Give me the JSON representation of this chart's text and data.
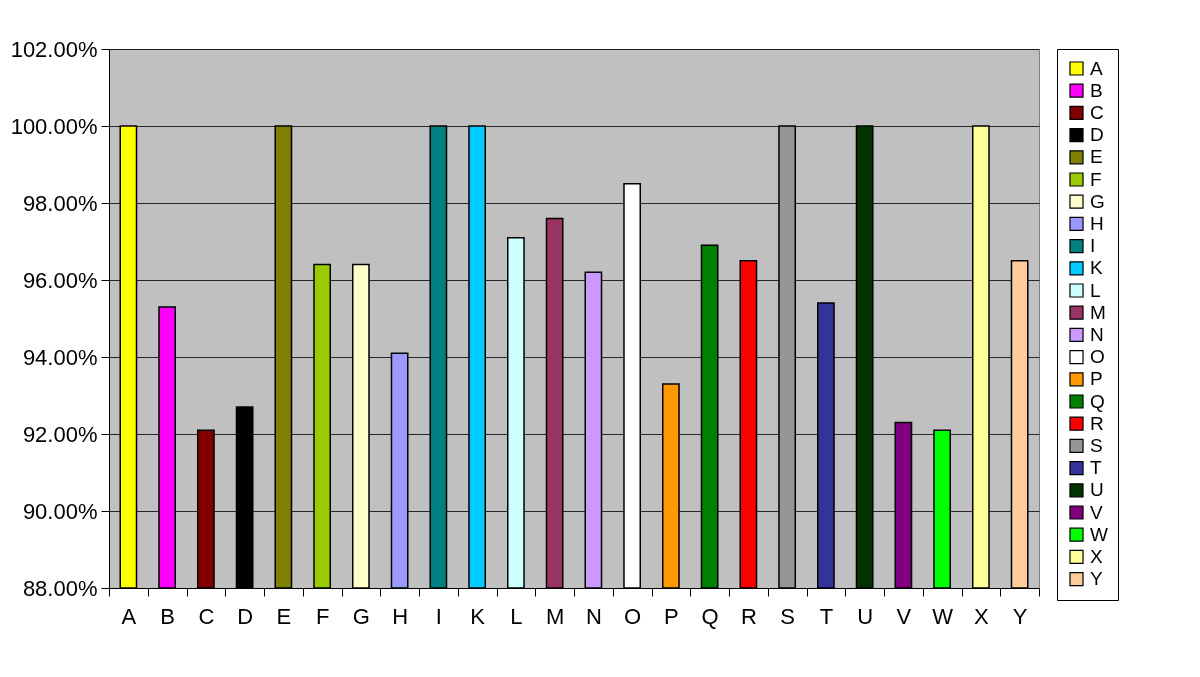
{
  "chart_data": {
    "type": "bar",
    "categories": [
      "A",
      "B",
      "C",
      "D",
      "E",
      "F",
      "G",
      "H",
      "I",
      "K",
      "L",
      "M",
      "N",
      "O",
      "P",
      "Q",
      "R",
      "S",
      "T",
      "U",
      "V",
      "W",
      "X",
      "Y"
    ],
    "series": [
      {
        "name": "A",
        "color": "#ffff00",
        "values": [
          100,
          null,
          null,
          null,
          null,
          null,
          null,
          null,
          null,
          null,
          null,
          null,
          null,
          null,
          null,
          null,
          null,
          null,
          null,
          null,
          null,
          null,
          null,
          null
        ]
      },
      {
        "name": "B",
        "color": "#ff00ff",
        "values": [
          null,
          95.3,
          null,
          null,
          null,
          null,
          null,
          null,
          null,
          null,
          null,
          null,
          null,
          null,
          null,
          null,
          null,
          null,
          null,
          null,
          null,
          null,
          null,
          null
        ]
      },
      {
        "name": "C",
        "color": "#800000",
        "values": [
          null,
          null,
          92.1,
          null,
          null,
          null,
          null,
          null,
          null,
          null,
          null,
          null,
          null,
          null,
          null,
          null,
          null,
          null,
          null,
          null,
          null,
          null,
          null,
          null
        ]
      },
      {
        "name": "D",
        "color": "#000000",
        "values": [
          null,
          null,
          null,
          92.7,
          null,
          null,
          null,
          null,
          null,
          null,
          null,
          null,
          null,
          null,
          null,
          null,
          null,
          null,
          null,
          null,
          null,
          null,
          null,
          null
        ]
      },
      {
        "name": "E",
        "color": "#808000",
        "values": [
          null,
          null,
          null,
          null,
          100,
          null,
          null,
          null,
          null,
          null,
          null,
          null,
          null,
          null,
          null,
          null,
          null,
          null,
          null,
          null,
          null,
          null,
          null,
          null
        ]
      },
      {
        "name": "F",
        "color": "#99cc00",
        "values": [
          null,
          null,
          null,
          null,
          null,
          96.4,
          null,
          null,
          null,
          null,
          null,
          null,
          null,
          null,
          null,
          null,
          null,
          null,
          null,
          null,
          null,
          null,
          null,
          null
        ]
      },
      {
        "name": "G",
        "color": "#ffffcc",
        "values": [
          null,
          null,
          null,
          null,
          null,
          null,
          96.4,
          null,
          null,
          null,
          null,
          null,
          null,
          null,
          null,
          null,
          null,
          null,
          null,
          null,
          null,
          null,
          null,
          null
        ]
      },
      {
        "name": "H",
        "color": "#9999ff",
        "values": [
          null,
          null,
          null,
          null,
          null,
          null,
          null,
          94.1,
          null,
          null,
          null,
          null,
          null,
          null,
          null,
          null,
          null,
          null,
          null,
          null,
          null,
          null,
          null,
          null
        ]
      },
      {
        "name": "I",
        "color": "#008080",
        "values": [
          null,
          null,
          null,
          null,
          null,
          null,
          null,
          null,
          100,
          null,
          null,
          null,
          null,
          null,
          null,
          null,
          null,
          null,
          null,
          null,
          null,
          null,
          null,
          null
        ]
      },
      {
        "name": "K",
        "color": "#00ccff",
        "values": [
          null,
          null,
          null,
          null,
          null,
          null,
          null,
          null,
          null,
          100,
          null,
          null,
          null,
          null,
          null,
          null,
          null,
          null,
          null,
          null,
          null,
          null,
          null,
          null
        ]
      },
      {
        "name": "L",
        "color": "#ccffff",
        "values": [
          null,
          null,
          null,
          null,
          null,
          null,
          null,
          null,
          null,
          null,
          97.1,
          null,
          null,
          null,
          null,
          null,
          null,
          null,
          null,
          null,
          null,
          null,
          null,
          null
        ]
      },
      {
        "name": "M",
        "color": "#993366",
        "values": [
          null,
          null,
          null,
          null,
          null,
          null,
          null,
          null,
          null,
          null,
          null,
          97.6,
          null,
          null,
          null,
          null,
          null,
          null,
          null,
          null,
          null,
          null,
          null,
          null
        ]
      },
      {
        "name": "N",
        "color": "#cc99ff",
        "values": [
          null,
          null,
          null,
          null,
          null,
          null,
          null,
          null,
          null,
          null,
          null,
          null,
          96.2,
          null,
          null,
          null,
          null,
          null,
          null,
          null,
          null,
          null,
          null,
          null
        ]
      },
      {
        "name": "O",
        "color": "#ffffff",
        "values": [
          null,
          null,
          null,
          null,
          null,
          null,
          null,
          null,
          null,
          null,
          null,
          null,
          null,
          98.5,
          null,
          null,
          null,
          null,
          null,
          null,
          null,
          null,
          null,
          null
        ]
      },
      {
        "name": "P",
        "color": "#ff9900",
        "values": [
          null,
          null,
          null,
          null,
          null,
          null,
          null,
          null,
          null,
          null,
          null,
          null,
          null,
          null,
          93.3,
          null,
          null,
          null,
          null,
          null,
          null,
          null,
          null,
          null
        ]
      },
      {
        "name": "Q",
        "color": "#008000",
        "values": [
          null,
          null,
          null,
          null,
          null,
          null,
          null,
          null,
          null,
          null,
          null,
          null,
          null,
          null,
          null,
          96.9,
          null,
          null,
          null,
          null,
          null,
          null,
          null,
          null
        ]
      },
      {
        "name": "R",
        "color": "#ff0000",
        "values": [
          null,
          null,
          null,
          null,
          null,
          null,
          null,
          null,
          null,
          null,
          null,
          null,
          null,
          null,
          null,
          null,
          96.5,
          null,
          null,
          null,
          null,
          null,
          null,
          null
        ]
      },
      {
        "name": "S",
        "color": "#969696",
        "values": [
          null,
          null,
          null,
          null,
          null,
          null,
          null,
          null,
          null,
          null,
          null,
          null,
          null,
          null,
          null,
          null,
          null,
          100,
          null,
          null,
          null,
          null,
          null,
          null
        ]
      },
      {
        "name": "T",
        "color": "#333399",
        "values": [
          null,
          null,
          null,
          null,
          null,
          null,
          null,
          null,
          null,
          null,
          null,
          null,
          null,
          null,
          null,
          null,
          null,
          null,
          95.4,
          null,
          null,
          null,
          null,
          null
        ]
      },
      {
        "name": "U",
        "color": "#003300",
        "values": [
          null,
          null,
          null,
          null,
          null,
          null,
          null,
          null,
          null,
          null,
          null,
          null,
          null,
          null,
          null,
          null,
          null,
          null,
          null,
          100,
          null,
          null,
          null,
          null
        ]
      },
      {
        "name": "V",
        "color": "#800080",
        "values": [
          null,
          null,
          null,
          null,
          null,
          null,
          null,
          null,
          null,
          null,
          null,
          null,
          null,
          null,
          null,
          null,
          null,
          null,
          null,
          null,
          92.3,
          null,
          null,
          null
        ]
      },
      {
        "name": "W",
        "color": "#00ff00",
        "values": [
          null,
          null,
          null,
          null,
          null,
          null,
          null,
          null,
          null,
          null,
          null,
          null,
          null,
          null,
          null,
          null,
          null,
          null,
          null,
          null,
          null,
          92.1,
          null,
          null
        ]
      },
      {
        "name": "X",
        "color": "#ffff99",
        "values": [
          null,
          null,
          null,
          null,
          null,
          null,
          null,
          null,
          null,
          null,
          null,
          null,
          null,
          null,
          null,
          null,
          null,
          null,
          null,
          null,
          null,
          null,
          100,
          null
        ]
      },
      {
        "name": "Y",
        "color": "#ffcc99",
        "values": [
          null,
          null,
          null,
          null,
          null,
          null,
          null,
          null,
          null,
          null,
          null,
          null,
          null,
          null,
          null,
          null,
          null,
          null,
          null,
          null,
          null,
          null,
          null,
          96.5
        ]
      }
    ],
    "ylim": [
      88,
      102
    ],
    "yticks": [
      {
        "value": 88,
        "label": "88.00%"
      },
      {
        "value": 90,
        "label": "90.00%"
      },
      {
        "value": 92,
        "label": "92.00%"
      },
      {
        "value": 94,
        "label": "94.00%"
      },
      {
        "value": 96,
        "label": "96.00%"
      },
      {
        "value": 98,
        "label": "98.00%"
      },
      {
        "value": 100,
        "label": "100.00%"
      },
      {
        "value": 102,
        "label": "102.00%"
      }
    ],
    "grid": "y",
    "legend": "right"
  }
}
